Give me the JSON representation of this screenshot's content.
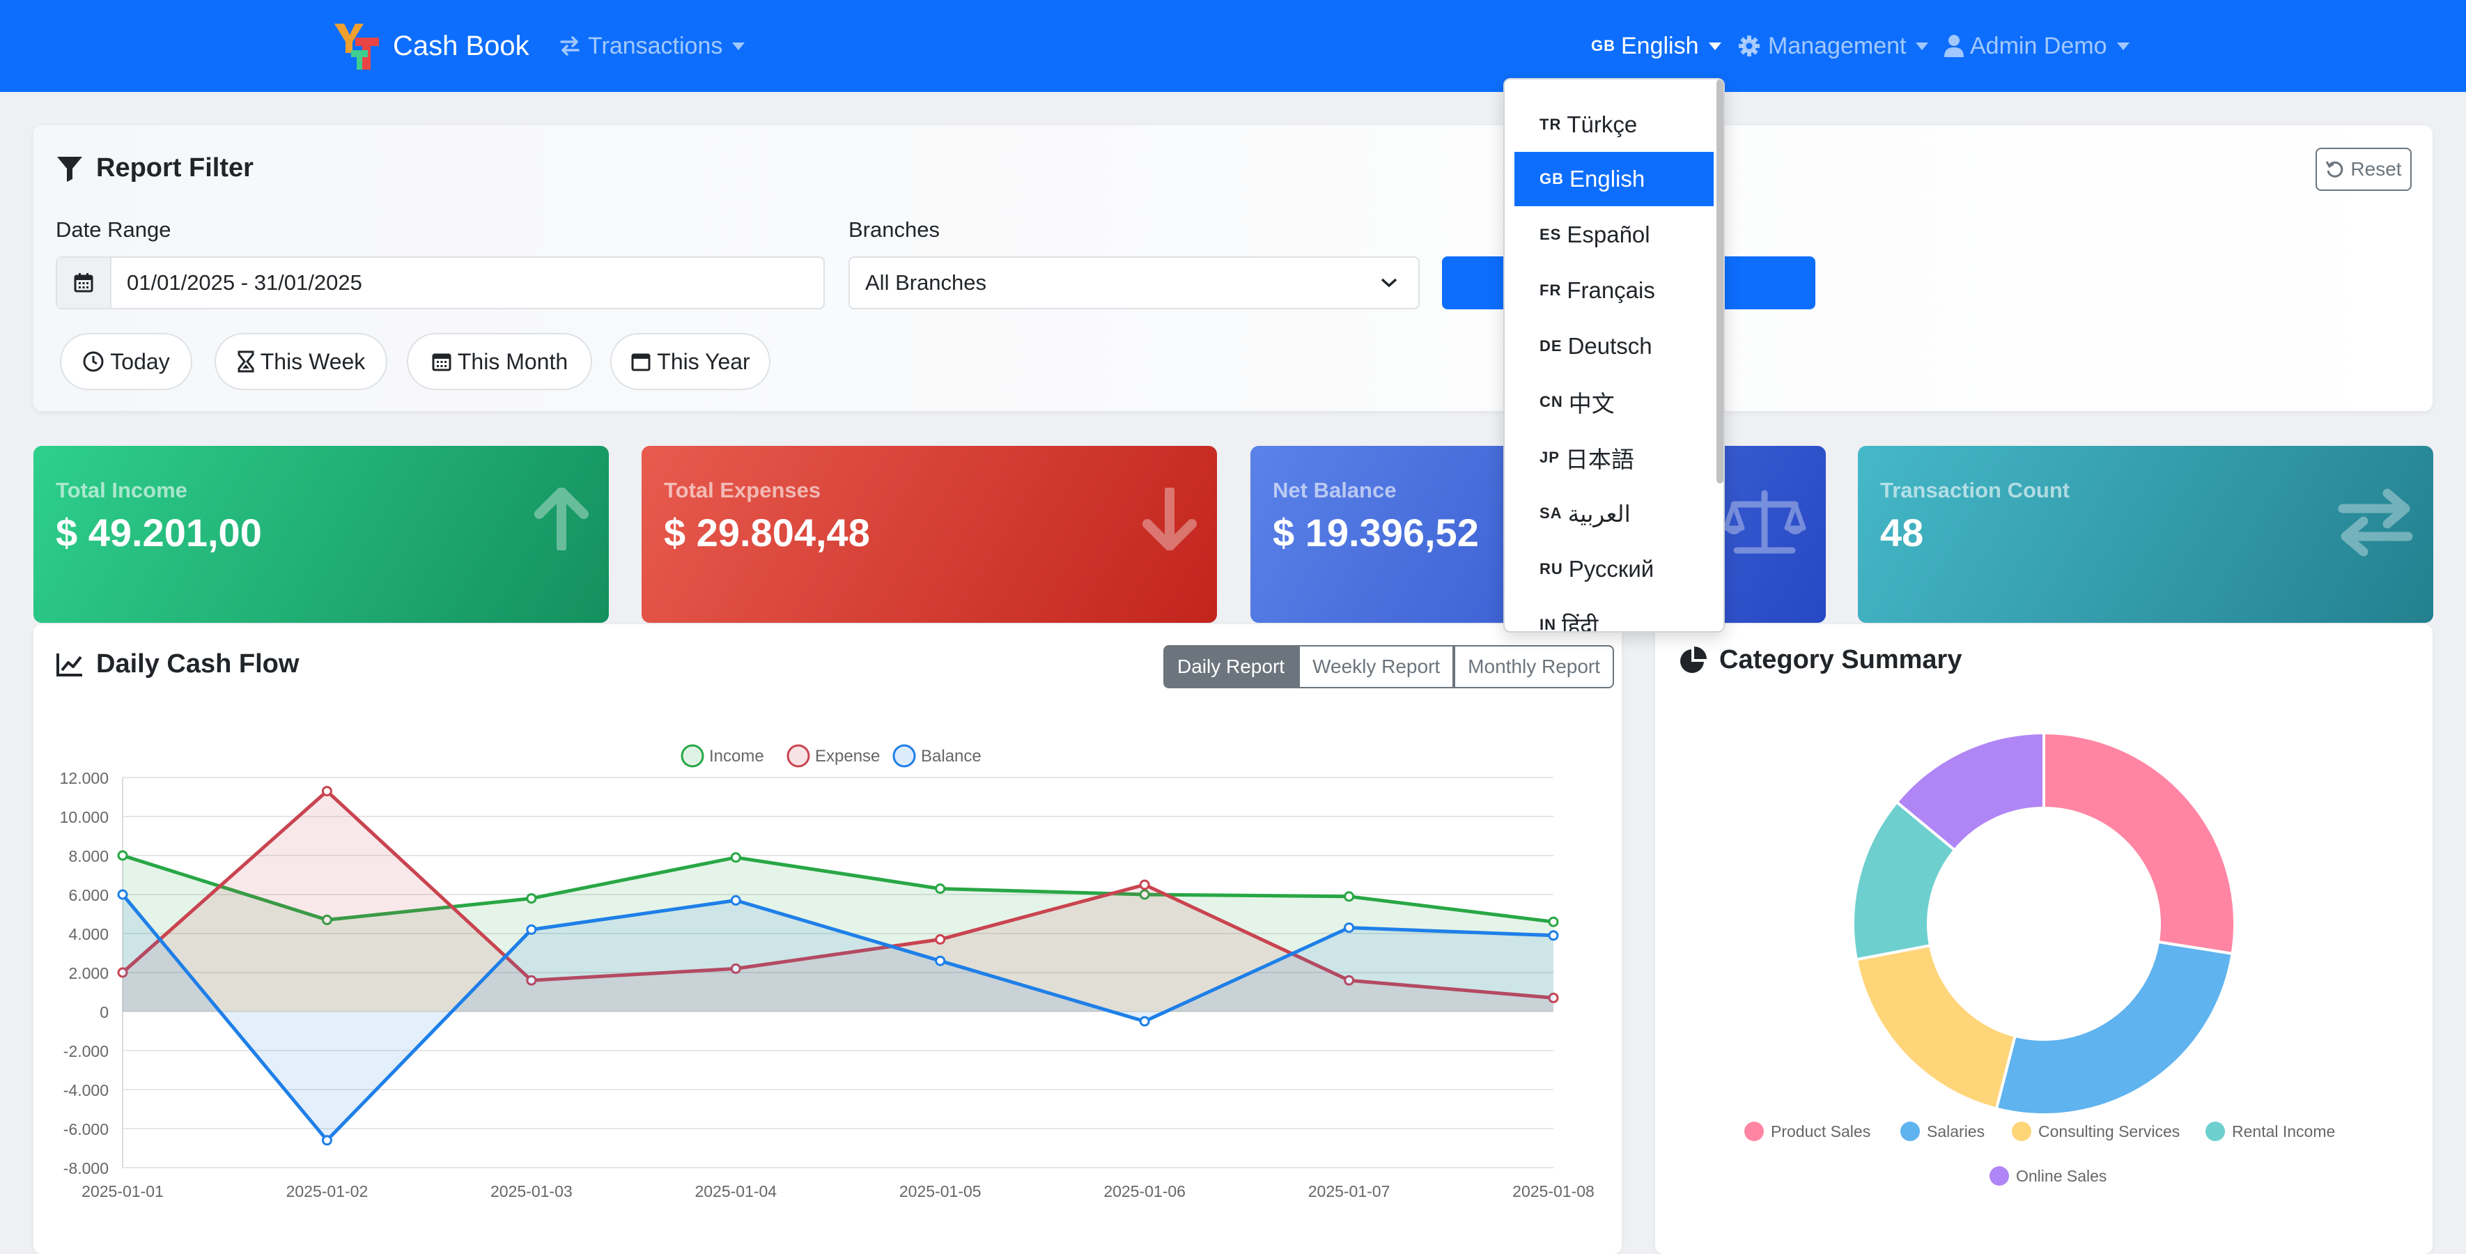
{
  "navbar": {
    "brand": "Cash Book",
    "transactions": "Transactions",
    "language_flag": "GB",
    "language": "English",
    "management": "Management",
    "user": "Admin Demo"
  },
  "filter": {
    "title": "Report Filter",
    "reset": "Reset",
    "date_label": "Date Range",
    "date_value": "01/01/2025 - 31/01/2025",
    "branches_label": "Branches",
    "branches_value": "All Branches",
    "quick": [
      "Today",
      "This Week",
      "This Month",
      "This Year"
    ]
  },
  "stats": [
    {
      "title": "Total Income",
      "value": "$ 49.201,00"
    },
    {
      "title": "Total Expenses",
      "value": "$ 29.804,48"
    },
    {
      "title": "Net Balance",
      "value": "$ 19.396,52"
    },
    {
      "title": "Transaction Count",
      "value": "48"
    }
  ],
  "daily_chart": {
    "title": "Daily Cash Flow",
    "tabs": [
      "Daily Report",
      "Weekly Report",
      "Monthly Report"
    ],
    "active_tab": "Daily Report"
  },
  "category": {
    "title": "Category Summary"
  },
  "language_menu": [
    {
      "flag": "TR",
      "label": "Türkçe"
    },
    {
      "flag": "GB",
      "label": "English",
      "active": true
    },
    {
      "flag": "ES",
      "label": "Español"
    },
    {
      "flag": "FR",
      "label": "Français"
    },
    {
      "flag": "DE",
      "label": "Deutsch"
    },
    {
      "flag": "CN",
      "label": "中文"
    },
    {
      "flag": "JP",
      "label": "日本語"
    },
    {
      "flag": "SA",
      "label": "العربية"
    },
    {
      "flag": "RU",
      "label": "Русский"
    },
    {
      "flag": "IN",
      "label": "हिंदी"
    }
  ],
  "colors": {
    "primary": "#0d6efd",
    "income": "#28a745",
    "expense": "#c94450",
    "balance": "#1e7fe8"
  },
  "chart_data": [
    {
      "type": "line",
      "x": [
        "2025-01-01",
        "2025-01-02",
        "2025-01-03",
        "2025-01-04",
        "2025-01-05",
        "2025-01-06",
        "2025-01-07",
        "2025-01-08"
      ],
      "series": [
        {
          "name": "Income",
          "values": [
            8000,
            4700,
            5800,
            7900,
            6300,
            6000,
            5900,
            4600
          ],
          "color": "#28a745"
        },
        {
          "name": "Expense",
          "values": [
            2000,
            11300,
            1600,
            2200,
            3700,
            6500,
            1600,
            700
          ],
          "color": "#c94450"
        },
        {
          "name": "Balance",
          "values": [
            6000,
            -6600,
            4200,
            5700,
            2600,
            -500,
            4300,
            3900
          ],
          "color": "#1e7fe8"
        }
      ],
      "yticks": [
        "12.000",
        "10.000",
        "8.000",
        "6.000",
        "4.000",
        "2.000",
        "0",
        "-2.000",
        "-4.000",
        "-6.000",
        "-8.000"
      ],
      "ylim": [
        -8000,
        12000
      ],
      "legend": "top",
      "grid": true
    },
    {
      "type": "pie",
      "labels": [
        "Product Sales",
        "Salaries",
        "Consulting Services",
        "Rental Income",
        "Online Sales"
      ],
      "values": [
        27.5,
        26.5,
        18,
        14,
        14
      ],
      "colors": [
        "#ff85a2",
        "#5fb3ee",
        "#ffd57a",
        "#6ecfcf",
        "#b085f5"
      ],
      "legend": "bottom"
    }
  ]
}
